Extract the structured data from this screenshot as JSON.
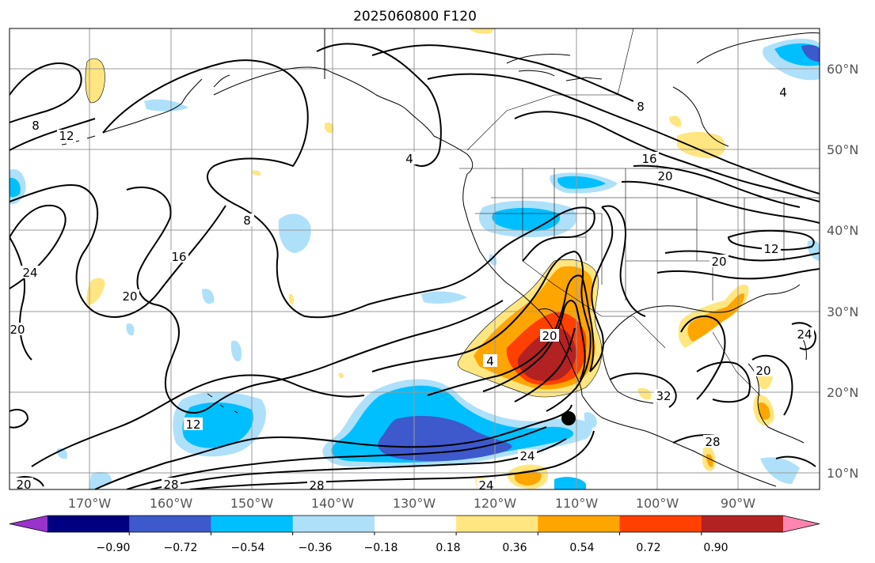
{
  "title": "2025060800 F120",
  "map": {
    "lon_labels": [
      "170°W",
      "160°W",
      "150°W",
      "140°W",
      "130°W",
      "120°W",
      "110°W",
      "100°W",
      "90°W"
    ],
    "lat_labels": [
      "60°N",
      "50°N",
      "40°N",
      "30°N",
      "20°N",
      "10°N"
    ],
    "contour_labels": [
      "8",
      "12",
      "8",
      "16",
      "20",
      "24",
      "20",
      "4",
      "16",
      "20",
      "20",
      "12",
      "24",
      "20",
      "32",
      "28",
      "12",
      "28",
      "24",
      "28",
      "24",
      "20",
      "4",
      "4",
      "8",
      "20"
    ],
    "marker": "storm-center-dot"
  },
  "colorbar": {
    "tick_labels": [
      "−0.90",
      "−0.72",
      "−0.54",
      "−0.36",
      "−0.18",
      "0.18",
      "0.36",
      "0.54",
      "0.72",
      "0.90"
    ],
    "colors": [
      "#9933cc",
      "#000080",
      "#3d59cc",
      "#00bfff",
      "#aee0fa",
      "#ffffff",
      "#ffe680",
      "#ffa500",
      "#ff4000",
      "#b22222",
      "#ff85b0"
    ]
  }
}
